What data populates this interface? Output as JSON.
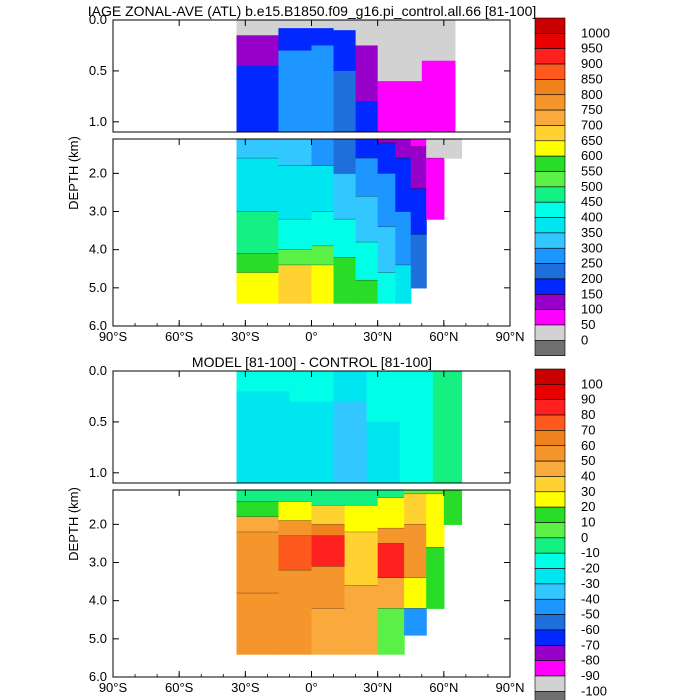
{
  "chart_data": [
    {
      "type": "heatmap",
      "title": "IAGE ZONAL-AVE (ATL) b.e15.B1850.f09_g16.pi_control.all.66 [81-100]",
      "ylabel": "DEPTH (km)",
      "xlim": [
        -90,
        90
      ],
      "ylim": [
        0,
        6
      ],
      "x_ticks": [
        "90°S",
        "60°S",
        "30°S",
        "0°",
        "30°N",
        "60°N",
        "90°N"
      ],
      "x_tick_values": [
        -90,
        -60,
        -30,
        0,
        30,
        60,
        90
      ],
      "y_ticks_upper": [
        "0.0",
        "0.5",
        "1.0"
      ],
      "y_ticks_upper_values": [
        0,
        0.5,
        1.0
      ],
      "y_ticks_lower": [
        "2.0",
        "3.0",
        "4.0",
        "5.0",
        "6.0"
      ],
      "y_ticks_lower_values": [
        2,
        3,
        4,
        5,
        6
      ],
      "colorbar_labels": [
        "1000",
        "950",
        "900",
        "850",
        "800",
        "750",
        "700",
        "650",
        "600",
        "550",
        "500",
        "450",
        "400",
        "350",
        "300",
        "250",
        "200",
        "150",
        "100",
        "50",
        "0"
      ],
      "colorbar_colors": [
        "#c80000",
        "#e80000",
        "#ff2020",
        "#ff5a1e",
        "#f0821e",
        "#f5962d",
        "#faaa3c",
        "#ffd232",
        "#ffff00",
        "#28dc28",
        "#5af046",
        "#14f082",
        "#00ffe6",
        "#00e6f0",
        "#32c8ff",
        "#1e96ff",
        "#1e6edc",
        "#0028ff",
        "#9600c8",
        "#ff00ff",
        "#d2d2d2",
        "#707070"
      ],
      "colorbar_values": [
        1000,
        950,
        900,
        850,
        800,
        750,
        700,
        650,
        600,
        550,
        500,
        450,
        400,
        350,
        300,
        250,
        200,
        150,
        100,
        50,
        0
      ],
      "ocean_lat_range": [
        -34,
        68
      ],
      "field_upper": [
        {
          "lat": -34,
          "levels": [
            {
              "to": 0.15,
              "value": 25
            },
            {
              "to": 0.45,
              "value": 125
            },
            {
              "to": 1.1,
              "value": 175
            }
          ]
        },
        {
          "lat": -15,
          "levels": [
            {
              "to": 0.08,
              "value": 25
            },
            {
              "to": 0.3,
              "value": 175
            },
            {
              "to": 1.1,
              "value": 275
            }
          ]
        },
        {
          "lat": 0,
          "levels": [
            {
              "to": 0.08,
              "value": 25
            },
            {
              "to": 0.25,
              "value": 175
            },
            {
              "to": 1.1,
              "value": 275
            }
          ]
        },
        {
          "lat": 10,
          "levels": [
            {
              "to": 0.1,
              "value": 25
            },
            {
              "to": 0.5,
              "value": 175
            },
            {
              "to": 1.1,
              "value": 225
            }
          ]
        },
        {
          "lat": 20,
          "levels": [
            {
              "to": 0.25,
              "value": 25
            },
            {
              "to": 0.8,
              "value": 125
            },
            {
              "to": 1.1,
              "value": 175
            }
          ]
        },
        {
          "lat": 30,
          "levels": [
            {
              "to": 0.6,
              "value": 25
            },
            {
              "to": 1.1,
              "value": 75
            }
          ]
        },
        {
          "lat": 50,
          "levels": [
            {
              "to": 0.4,
              "value": 25
            },
            {
              "to": 1.1,
              "value": 75
            }
          ]
        },
        {
          "lat": 65,
          "levels": [
            {
              "to": 1.1,
              "value": 25
            }
          ]
        }
      ],
      "field_lower": [
        {
          "lat": -34,
          "depth_max": 5.4,
          "levels": [
            {
              "to": 1.6,
              "value": 325
            },
            {
              "to": 3.0,
              "value": 375
            },
            {
              "to": 4.1,
              "value": 475
            },
            {
              "to": 4.6,
              "value": 575
            },
            {
              "to": 5.4,
              "value": 625
            }
          ]
        },
        {
          "lat": -15,
          "depth_max": 5.4,
          "levels": [
            {
              "to": 1.8,
              "value": 325
            },
            {
              "to": 3.2,
              "value": 375
            },
            {
              "to": 4.0,
              "value": 425
            },
            {
              "to": 4.4,
              "value": 525
            },
            {
              "to": 5.4,
              "value": 675
            }
          ]
        },
        {
          "lat": 0,
          "depth_max": 5.4,
          "levels": [
            {
              "to": 1.8,
              "value": 275
            },
            {
              "to": 3.0,
              "value": 375
            },
            {
              "to": 3.9,
              "value": 425
            },
            {
              "to": 4.4,
              "value": 525
            },
            {
              "to": 5.4,
              "value": 625
            }
          ]
        },
        {
          "lat": 10,
          "depth_max": 5.4,
          "levels": [
            {
              "to": 2.0,
              "value": 225
            },
            {
              "to": 3.2,
              "value": 325
            },
            {
              "to": 4.2,
              "value": 425
            },
            {
              "to": 5.4,
              "value": 575
            }
          ]
        },
        {
          "lat": 20,
          "depth_max": 5.4,
          "levels": [
            {
              "to": 1.6,
              "value": 175
            },
            {
              "to": 2.6,
              "value": 275
            },
            {
              "to": 3.8,
              "value": 325
            },
            {
              "to": 4.8,
              "value": 425
            },
            {
              "to": 5.4,
              "value": 575
            }
          ]
        },
        {
          "lat": 30,
          "depth_max": 5.4,
          "levels": [
            {
              "to": 1.2,
              "value": 125
            },
            {
              "to": 2.0,
              "value": 175
            },
            {
              "to": 3.4,
              "value": 275
            },
            {
              "to": 4.6,
              "value": 325
            },
            {
              "to": 5.4,
              "value": 425
            }
          ]
        },
        {
          "lat": 38,
          "depth_max": 5.4,
          "levels": [
            {
              "to": 1.6,
              "value": 125
            },
            {
              "to": 3.0,
              "value": 175
            },
            {
              "to": 4.4,
              "value": 275
            },
            {
              "to": 5.4,
              "value": 375
            }
          ]
        },
        {
          "lat": 45,
          "depth_max": 5.0,
          "levels": [
            {
              "to": 1.3,
              "value": 75
            },
            {
              "to": 2.4,
              "value": 125
            },
            {
              "to": 3.6,
              "value": 175
            },
            {
              "to": 5.0,
              "value": 225
            }
          ]
        },
        {
          "lat": 52,
          "depth_max": 3.2,
          "levels": [
            {
              "to": 1.6,
              "value": 25
            },
            {
              "to": 3.2,
              "value": 75
            }
          ]
        },
        {
          "lat": 60,
          "depth_max": 1.6,
          "levels": [
            {
              "to": 1.6,
              "value": 25
            }
          ]
        },
        {
          "lat": 68,
          "depth_max": 1.2,
          "levels": [
            {
              "to": 1.2,
              "value": 25
            }
          ]
        }
      ]
    },
    {
      "type": "heatmap",
      "title": "MODEL [81-100] - CONTROL [81-100]",
      "ylabel": "DEPTH (km)",
      "xlim": [
        -90,
        90
      ],
      "ylim": [
        0,
        6
      ],
      "x_ticks": [
        "90°S",
        "60°S",
        "30°S",
        "0°",
        "30°N",
        "60°N",
        "90°N"
      ],
      "x_tick_values": [
        -90,
        -60,
        -30,
        0,
        30,
        60,
        90
      ],
      "y_ticks_upper": [
        "0.0",
        "0.5",
        "1.0"
      ],
      "y_ticks_upper_values": [
        0,
        0.5,
        1.0
      ],
      "y_ticks_lower": [
        "2.0",
        "3.0",
        "4.0",
        "5.0",
        "6.0"
      ],
      "y_ticks_lower_values": [
        2,
        3,
        4,
        5,
        6
      ],
      "colorbar_labels": [
        "100",
        "90",
        "80",
        "70",
        "60",
        "50",
        "40",
        "30",
        "20",
        "10",
        "0",
        "-10",
        "-20",
        "-30",
        "-40",
        "-50",
        "-60",
        "-70",
        "-80",
        "-90",
        "-100"
      ],
      "colorbar_colors": [
        "#c80000",
        "#e80000",
        "#ff2020",
        "#ff5a1e",
        "#f0821e",
        "#f5962d",
        "#faaa3c",
        "#ffd232",
        "#ffff00",
        "#28dc28",
        "#5af046",
        "#14f082",
        "#00ffe6",
        "#00e6f0",
        "#32c8ff",
        "#1e96ff",
        "#1e6edc",
        "#0028ff",
        "#9600c8",
        "#ff00ff",
        "#d2d2d2",
        "#707070"
      ],
      "colorbar_values": [
        100,
        90,
        80,
        70,
        60,
        50,
        40,
        30,
        20,
        10,
        0,
        -10,
        -20,
        -30,
        -40,
        -50,
        -60,
        -70,
        -80,
        -90,
        -100
      ],
      "ocean_lat_range": [
        -34,
        68
      ],
      "field_upper": [
        {
          "lat": -34,
          "levels": [
            {
              "to": 0.2,
              "value": -15
            },
            {
              "to": 1.1,
              "value": -25
            }
          ]
        },
        {
          "lat": -10,
          "levels": [
            {
              "to": 0.3,
              "value": -15
            },
            {
              "to": 1.1,
              "value": -25
            }
          ]
        },
        {
          "lat": 10,
          "levels": [
            {
              "to": 0.3,
              "value": -25
            },
            {
              "to": 1.1,
              "value": -35
            }
          ]
        },
        {
          "lat": 25,
          "levels": [
            {
              "to": 0.5,
              "value": -15
            },
            {
              "to": 1.1,
              "value": -25
            }
          ]
        },
        {
          "lat": 40,
          "levels": [
            {
              "to": 1.1,
              "value": -15
            }
          ]
        },
        {
          "lat": 55,
          "levels": [
            {
              "to": 1.1,
              "value": -5
            }
          ]
        },
        {
          "lat": 68,
          "levels": [
            {
              "to": 1.1,
              "value": -5
            }
          ]
        }
      ],
      "field_lower": [
        {
          "lat": -34,
          "depth_max": 5.4,
          "levels": [
            {
              "to": 1.4,
              "value": -5
            },
            {
              "to": 1.8,
              "value": 15
            },
            {
              "to": 2.2,
              "value": 45
            },
            {
              "to": 3.8,
              "value": 55
            },
            {
              "to": 5.4,
              "value": 55
            }
          ]
        },
        {
          "lat": -15,
          "depth_max": 5.4,
          "levels": [
            {
              "to": 1.4,
              "value": -5
            },
            {
              "to": 1.9,
              "value": 25
            },
            {
              "to": 2.3,
              "value": 55
            },
            {
              "to": 3.2,
              "value": 75
            },
            {
              "to": 5.4,
              "value": 55
            }
          ]
        },
        {
          "lat": 0,
          "depth_max": 5.4,
          "levels": [
            {
              "to": 1.5,
              "value": -5
            },
            {
              "to": 2.0,
              "value": 35
            },
            {
              "to": 2.3,
              "value": 65
            },
            {
              "to": 3.1,
              "value": 85
            },
            {
              "to": 4.2,
              "value": 55
            },
            {
              "to": 5.4,
              "value": 45
            }
          ]
        },
        {
          "lat": 15,
          "depth_max": 5.4,
          "levels": [
            {
              "to": 1.5,
              "value": -5
            },
            {
              "to": 2.2,
              "value": 25
            },
            {
              "to": 3.6,
              "value": 35
            },
            {
              "to": 5.4,
              "value": 45
            }
          ]
        },
        {
          "lat": 30,
          "depth_max": 5.4,
          "levels": [
            {
              "to": 1.3,
              "value": -5
            },
            {
              "to": 2.1,
              "value": 25
            },
            {
              "to": 2.5,
              "value": 55
            },
            {
              "to": 3.4,
              "value": 85
            },
            {
              "to": 4.2,
              "value": 45
            },
            {
              "to": 5.4,
              "value": 5
            }
          ]
        },
        {
          "lat": 42,
          "depth_max": 4.9,
          "levels": [
            {
              "to": 1.2,
              "value": 5
            },
            {
              "to": 2.0,
              "value": 35
            },
            {
              "to": 3.4,
              "value": 55
            },
            {
              "to": 4.2,
              "value": 25
            },
            {
              "to": 4.9,
              "value": -45
            }
          ]
        },
        {
          "lat": 52,
          "depth_max": 4.2,
          "levels": [
            {
              "to": 1.2,
              "value": 5
            },
            {
              "to": 2.6,
              "value": 25
            },
            {
              "to": 4.2,
              "value": 15
            }
          ]
        },
        {
          "lat": 60,
          "depth_max": 2.0,
          "levels": [
            {
              "to": 2.0,
              "value": 15
            }
          ]
        },
        {
          "lat": 68,
          "depth_max": 1.2,
          "levels": [
            {
              "to": 1.2,
              "value": 15
            }
          ]
        }
      ]
    }
  ]
}
